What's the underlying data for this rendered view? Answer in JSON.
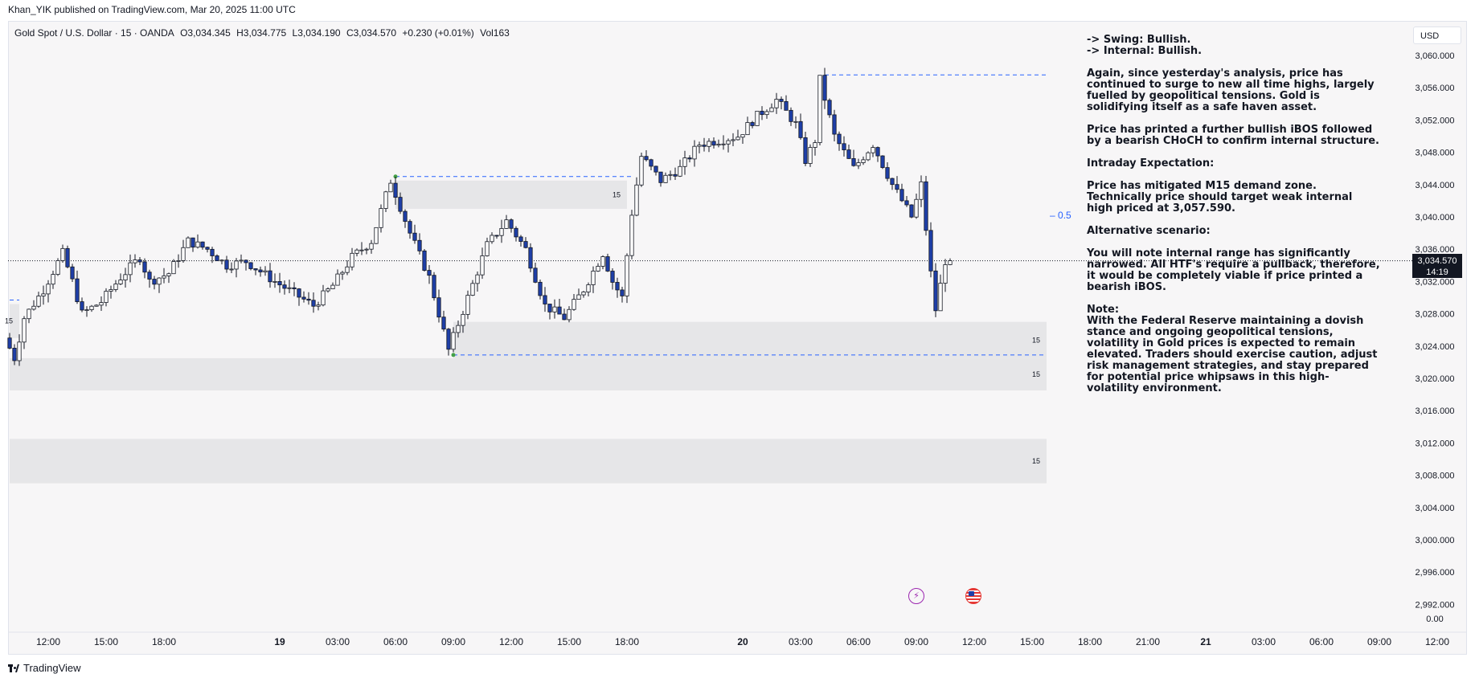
{
  "header": {
    "published_text": "Khan_YIK published on TradingView.com, Mar 20, 2025 11:00 UTC"
  },
  "symbol": {
    "name": "Gold Spot / U.S. Dollar · 15 · OANDA",
    "open": "O3,034.345",
    "high": "H3,034.775",
    "low": "L3,034.190",
    "close": "C3,034.570",
    "change": "+0.230 (+0.01%)",
    "volume": "Vol163"
  },
  "currency": "USD",
  "current_price": {
    "price": "3,034.570",
    "countdown": "14:19"
  },
  "fib_label": "0.5",
  "zone_labels": [
    "15",
    "15",
    "15",
    "15",
    "15"
  ],
  "notes": {
    "swing": "-> Swing:  Bullish.",
    "internal": "-> Internal:  Bullish.",
    "p1": "Again, since yesterday's analysis, price has continued to surge to new all time highs, largely fuelled by geopolitical tensions. Gold is solidifying itself as a safe haven asset.",
    "p2": "Price has printed a further bullish iBOS followed by a bearish CHoCH to confirm internal structure.",
    "p3_title": "Intraday Expectation:",
    "p4": "Price has mitigated M15 demand zone. Technically price should target weak internal high priced at 3,057.590.",
    "p5_title": "Alternative scenario:",
    "p6": "You will note internal range has significantly narrowed. All HTF's require a pullback, therefore, it would be completely viable if price printed a bearish iBOS.",
    "p7_title": "Note:",
    "p8": "With the Federal Reserve maintaining a dovish stance and ongoing geopolitical tensions, volatility in Gold prices is expected to remain elevated. Traders should exercise caution, adjust risk management strategies, and stay prepared for potential price whipsaws in this high-volatility environment."
  },
  "footer": {
    "brand": "TradingView"
  },
  "colors": {
    "bull": "#ffffff",
    "bear": "#1e3fa8",
    "wick": "#131722",
    "zone": "#e6e6e8",
    "level": "#2962ff"
  },
  "icons": [
    "lightning-icon",
    "us-flag-icon"
  ],
  "chart_data": {
    "type": "candlestick",
    "symbol": "XAUUSD",
    "timeframe": "15",
    "y_ticks": [
      "3,060.000",
      "3,056.000",
      "3,052.000",
      "3,048.000",
      "3,044.000",
      "3,040.000",
      "3,036.000",
      "3,032.000",
      "3,028.000",
      "3,024.000",
      "3,020.000",
      "3,016.000",
      "3,012.000",
      "3,008.000",
      "3,004.000",
      "3,000.000",
      "2,996.000",
      "2,992.000"
    ],
    "y_ticks_extra": "0.00",
    "ylim": [
      2991,
      3063
    ],
    "x_ticks": [
      "12:00",
      "15:00",
      "18:00",
      "19",
      "03:00",
      "06:00",
      "09:00",
      "12:00",
      "15:00",
      "18:00",
      "20",
      "03:00",
      "06:00",
      "09:00",
      "12:00",
      "15:00",
      "18:00",
      "21:00",
      "21",
      "03:00",
      "06:00",
      "09:00",
      "12:00"
    ],
    "x_tick_times": [
      "03-18 12:00",
      "03-18 15:00",
      "03-18 18:00",
      "03-19 00:00",
      "03-19 03:00",
      "03-19 06:00",
      "03-19 09:00",
      "03-19 12:00",
      "03-19 15:00",
      "03-19 18:00",
      "03-20 00:00",
      "03-20 03:00",
      "03-20 06:00",
      "03-20 09:00",
      "03-20 12:00",
      "03-20 15:00",
      "03-20 18:00",
      "03-20 21:00",
      "03-21 00:00",
      "03-21 03:00",
      "03-21 06:00",
      "03-21 09:00",
      "03-21 12:00"
    ],
    "x_tick_bold": [
      false,
      false,
      false,
      true,
      false,
      false,
      false,
      false,
      false,
      false,
      true,
      false,
      false,
      false,
      false,
      false,
      false,
      false,
      true,
      false,
      false,
      false,
      false
    ],
    "last_close": 3034.57,
    "levels": [
      {
        "price": 3057.59,
        "from": "03-20 04:15",
        "to": "03-20 15:45"
      },
      {
        "price": 3045.0,
        "from": "03-19 06:00",
        "to": "03-19 18:15"
      },
      {
        "price": 3022.9,
        "from": "03-19 09:00",
        "to": "03-20 15:45"
      },
      {
        "price": 3029.7,
        "from": "03-18 10:00",
        "to": "03-18 10:30"
      }
    ],
    "fib_level": {
      "label": "0.5",
      "price": 3040.0
    },
    "zones": [
      {
        "low": 3041.0,
        "high": 3044.5,
        "from": "03-19 06:00",
        "to": "03-19 18:00",
        "label": "15"
      },
      {
        "low": 3022.5,
        "high": 3027.0,
        "from": "03-19 09:00",
        "to": "03-20 15:45",
        "label": "15"
      },
      {
        "low": 3018.5,
        "high": 3022.5,
        "from": "03-18 10:00",
        "to": "03-20 15:45",
        "label": "15"
      },
      {
        "low": 3007.0,
        "high": 3012.5,
        "from": "03-18 10:00",
        "to": "03-20 15:45",
        "label": "15"
      },
      {
        "low": 3025.0,
        "high": 3029.2,
        "from": "03-18 10:00",
        "to": "03-18 10:30",
        "label": "15"
      }
    ],
    "swing_points": [
      {
        "time": "03-19 06:00",
        "price": 3045.0
      },
      {
        "time": "03-19 09:00",
        "price": 3022.9
      }
    ],
    "key_points": [
      {
        "time": "03-18 10:00",
        "price": 3025.0
      },
      {
        "time": "03-18 10:30",
        "price": 3022.5
      },
      {
        "time": "03-18 11:00",
        "price": 3027.5
      },
      {
        "time": "03-18 12:00",
        "price": 3031.0
      },
      {
        "time": "03-18 13:00",
        "price": 3035.5
      },
      {
        "time": "03-18 13:30",
        "price": 3032.0
      },
      {
        "time": "03-18 14:00",
        "price": 3028.0
      },
      {
        "time": "03-18 15:00",
        "price": 3029.5
      },
      {
        "time": "03-18 16:00",
        "price": 3032.5
      },
      {
        "time": "03-18 17:00",
        "price": 3035.0
      },
      {
        "time": "03-18 17:30",
        "price": 3032.0
      },
      {
        "time": "03-18 18:30",
        "price": 3033.0
      },
      {
        "time": "03-18 19:30",
        "price": 3037.0
      },
      {
        "time": "03-18 20:30",
        "price": 3036.0
      },
      {
        "time": "03-18 21:30",
        "price": 3034.0
      },
      {
        "time": "03-18 22:30",
        "price": 3034.5
      },
      {
        "time": "03-19 00:00",
        "price": 3032.0
      },
      {
        "time": "03-19 01:00",
        "price": 3030.5
      },
      {
        "time": "03-19 02:00",
        "price": 3029.0
      },
      {
        "time": "03-19 03:00",
        "price": 3031.5
      },
      {
        "time": "03-19 04:00",
        "price": 3035.0
      },
      {
        "time": "03-19 05:00",
        "price": 3037.0
      },
      {
        "time": "03-19 06:00",
        "price": 3044.5
      },
      {
        "time": "03-19 07:00",
        "price": 3038.0
      },
      {
        "time": "03-19 08:00",
        "price": 3032.5
      },
      {
        "time": "03-19 09:00",
        "price": 3023.5
      },
      {
        "time": "03-19 10:00",
        "price": 3030.0
      },
      {
        "time": "03-19 11:00",
        "price": 3036.5
      },
      {
        "time": "03-19 12:00",
        "price": 3039.5
      },
      {
        "time": "03-19 13:00",
        "price": 3036.0
      },
      {
        "time": "03-19 14:00",
        "price": 3029.0
      },
      {
        "time": "03-19 15:00",
        "price": 3027.5
      },
      {
        "time": "03-19 16:00",
        "price": 3031.0
      },
      {
        "time": "03-19 17:00",
        "price": 3035.5
      },
      {
        "time": "03-19 17:30",
        "price": 3032.0
      },
      {
        "time": "03-19 18:00",
        "price": 3030.0
      },
      {
        "time": "03-19 18:30",
        "price": 3040.5
      },
      {
        "time": "03-19 19:00",
        "price": 3047.5
      },
      {
        "time": "03-19 20:00",
        "price": 3044.5
      },
      {
        "time": "03-19 21:00",
        "price": 3046.0
      },
      {
        "time": "03-19 22:00",
        "price": 3049.0
      },
      {
        "time": "03-20 00:00",
        "price": 3050.0
      },
      {
        "time": "03-20 01:00",
        "price": 3052.5
      },
      {
        "time": "03-20 02:00",
        "price": 3054.5
      },
      {
        "time": "03-20 03:00",
        "price": 3051.5
      },
      {
        "time": "03-20 03:30",
        "price": 3047.0
      },
      {
        "time": "03-20 04:00",
        "price": 3049.5
      },
      {
        "time": "03-20 04:15",
        "price": 3057.0
      },
      {
        "time": "03-20 05:00",
        "price": 3050.0
      },
      {
        "time": "03-20 06:00",
        "price": 3046.0
      },
      {
        "time": "03-20 07:00",
        "price": 3049.0
      },
      {
        "time": "03-20 08:00",
        "price": 3044.0
      },
      {
        "time": "03-20 09:00",
        "price": 3040.0
      },
      {
        "time": "03-20 09:30",
        "price": 3044.0
      },
      {
        "time": "03-20 10:00",
        "price": 3033.0
      },
      {
        "time": "03-20 10:15",
        "price": 3028.5
      },
      {
        "time": "03-20 10:45",
        "price": 3034.57
      }
    ]
  }
}
